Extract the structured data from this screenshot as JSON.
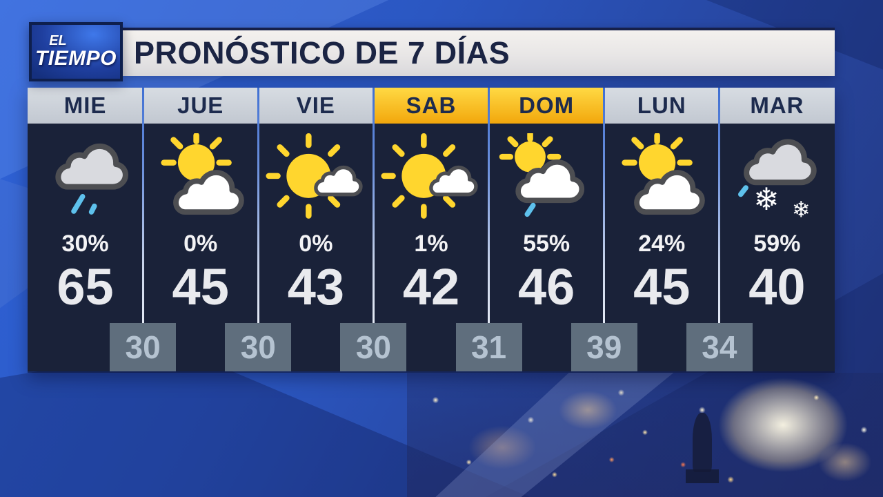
{
  "brand": {
    "name": "EL TIEMPO",
    "line1": "EL",
    "line2": "TIEMPO"
  },
  "header": {
    "title": "PRONÓSTICO DE 7 DÍAS"
  },
  "forecast": {
    "days": [
      {
        "label": "MIE",
        "weekend": false,
        "icon": "cloud-rain",
        "precip": "30%",
        "high": "65"
      },
      {
        "label": "JUE",
        "weekend": false,
        "icon": "sun-behind-cloud",
        "precip": "0%",
        "high": "45"
      },
      {
        "label": "VIE",
        "weekend": false,
        "icon": "mostly-sunny",
        "precip": "0%",
        "high": "43"
      },
      {
        "label": "SAB",
        "weekend": true,
        "icon": "mostly-sunny",
        "precip": "1%",
        "high": "42"
      },
      {
        "label": "DOM",
        "weekend": true,
        "icon": "cloud-sun-shower",
        "precip": "55%",
        "high": "46"
      },
      {
        "label": "LUN",
        "weekend": false,
        "icon": "sun-behind-cloud",
        "precip": "24%",
        "high": "45"
      },
      {
        "label": "MAR",
        "weekend": false,
        "icon": "cloud-snow",
        "precip": "59%",
        "high": "40"
      }
    ],
    "lows": [
      "30",
      "30",
      "30",
      "31",
      "39",
      "34"
    ]
  },
  "colors": {
    "weekend_header": "#ffc81e",
    "weekday_header": "#c9cfd8",
    "panel_bg": "#1a2239",
    "low_box": "#5f6e7d",
    "sun": "#ffd62e",
    "rain": "#5ec1ec",
    "background_blue": "#2b55c0"
  }
}
